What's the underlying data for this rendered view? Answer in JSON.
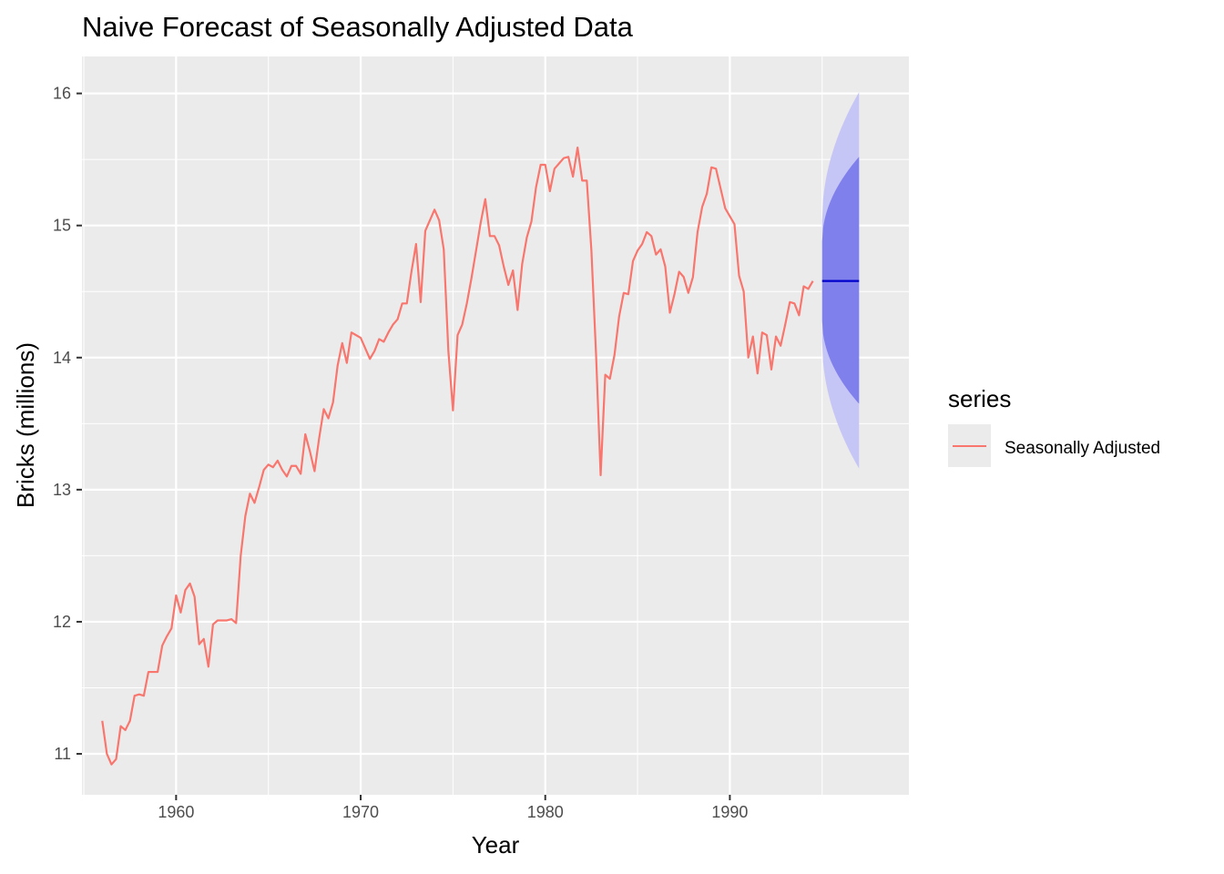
{
  "chart_data": {
    "type": "line",
    "title": "Naive Forecast of Seasonally Adjusted Data",
    "xlabel": "Year",
    "ylabel": "Bricks (millions)",
    "xlim": [
      1954.9,
      1999.7
    ],
    "ylim": [
      10.69,
      16.28
    ],
    "x_ticks": [
      1960,
      1970,
      1980,
      1990
    ],
    "x_tick_labels": [
      "1960",
      "1970",
      "1980",
      "1990"
    ],
    "y_ticks": [
      11,
      12,
      13,
      14,
      15,
      16
    ],
    "y_tick_labels": [
      "11",
      "12",
      "13",
      "14",
      "15",
      "16"
    ],
    "x_minor_ticks": [
      1955,
      1965,
      1975,
      1985,
      1995
    ],
    "y_minor_ticks": [
      11.5,
      12.5,
      13.5,
      14.5,
      15.5
    ],
    "grid": true,
    "legend": {
      "title": "series",
      "position": "right",
      "entries": [
        "Seasonally Adjusted"
      ]
    },
    "series": [
      {
        "name": "Seasonally Adjusted",
        "color": "#F8766D",
        "x_start": 1956.0,
        "step": 0.25,
        "values": [
          11.25,
          11.0,
          10.92,
          10.96,
          11.21,
          11.18,
          11.25,
          11.44,
          11.45,
          11.44,
          11.62,
          11.62,
          11.62,
          11.82,
          11.89,
          11.95,
          12.2,
          12.07,
          12.24,
          12.29,
          12.19,
          11.83,
          11.87,
          11.66,
          11.98,
          12.01,
          12.01,
          12.01,
          12.02,
          11.99,
          12.5,
          12.8,
          12.97,
          12.9,
          13.02,
          13.15,
          13.19,
          13.17,
          13.22,
          13.15,
          13.1,
          13.18,
          13.18,
          13.12,
          13.42,
          13.29,
          13.14,
          13.39,
          13.61,
          13.54,
          13.66,
          13.94,
          14.11,
          13.96,
          14.19,
          14.17,
          14.15,
          14.07,
          13.99,
          14.05,
          14.14,
          14.12,
          14.19,
          14.25,
          14.29,
          14.41,
          14.41,
          14.65,
          14.86,
          14.42,
          14.96,
          15.04,
          15.12,
          15.04,
          14.82,
          14.05,
          13.6,
          14.17,
          14.25,
          14.41,
          14.6,
          14.81,
          15.02,
          15.2,
          14.92,
          14.92,
          14.85,
          14.69,
          14.55,
          14.66,
          14.36,
          14.71,
          14.91,
          15.03,
          15.29,
          15.46,
          15.46,
          15.26,
          15.43,
          15.47,
          15.51,
          15.52,
          15.37,
          15.59,
          15.34,
          15.34,
          14.81,
          14.03,
          13.11,
          13.87,
          13.84,
          14.02,
          14.31,
          14.49,
          14.48,
          14.73,
          14.81,
          14.86,
          14.95,
          14.92,
          14.78,
          14.82,
          14.69,
          14.34,
          14.48,
          14.65,
          14.61,
          14.49,
          14.61,
          14.95,
          15.14,
          15.24,
          15.44,
          15.43,
          15.28,
          15.13,
          15.07,
          15.01,
          14.62,
          14.5,
          14.0,
          14.16,
          13.88,
          14.19,
          14.17,
          13.91,
          14.16,
          14.09,
          14.25,
          14.42,
          14.41,
          14.32,
          14.54,
          14.52,
          14.58
        ]
      }
    ],
    "forecast": {
      "x_start": 1995.0,
      "x_end": 1997.0,
      "point": 14.58,
      "interval_80": {
        "lower_start": 14.28,
        "upper_start": 14.88,
        "lower_end": 13.65,
        "upper_end": 15.52
      },
      "interval_95": {
        "lower_start": 14.12,
        "upper_start": 15.04,
        "lower_end": 13.16,
        "upper_end": 16.01
      },
      "line_color": "#0000CC",
      "band80_color": "#8080EC",
      "band95_color": "#C6C6F6"
    }
  }
}
